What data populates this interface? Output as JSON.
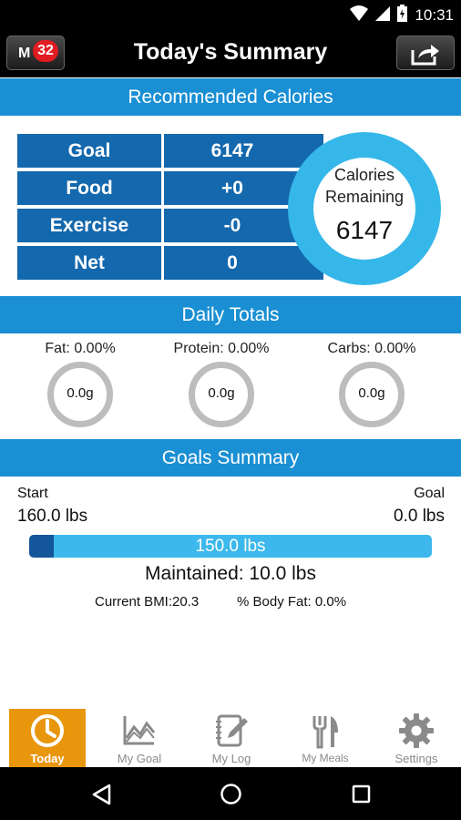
{
  "status_bar": {
    "time": "10:31"
  },
  "header": {
    "left_button_letter": "M",
    "badge_count": "32",
    "title": "Today's Summary"
  },
  "recommended": {
    "section_title": "Recommended Calories",
    "rows": [
      {
        "label": "Goal",
        "value": "6147"
      },
      {
        "label": "Food",
        "value": "+0"
      },
      {
        "label": "Exercise",
        "value": "-0"
      },
      {
        "label": "Net",
        "value": "0"
      }
    ],
    "remaining_label": "Calories Remaining",
    "remaining_value": "6147"
  },
  "daily_totals": {
    "section_title": "Daily Totals",
    "macros": [
      {
        "label": "Fat: 0.00%",
        "value": "0.0g"
      },
      {
        "label": "Protein: 0.00%",
        "value": "0.0g"
      },
      {
        "label": "Carbs: 0.00%",
        "value": "0.0g"
      }
    ]
  },
  "goals_summary": {
    "section_title": "Goals Summary",
    "start_label": "Start",
    "start_value": "160.0 lbs",
    "goal_label": "Goal",
    "goal_value": "0.0 lbs",
    "progress_text": "150.0 lbs",
    "progress_fraction": 0.06,
    "maintained_text": "Maintained: 10.0 lbs",
    "bmi_text": "Current BMI:20.3",
    "body_fat_text": "% Body Fat: 0.0%"
  },
  "bottom_nav": {
    "items": [
      {
        "label": "Today",
        "icon": "today-icon",
        "active": true
      },
      {
        "label": "My Goal",
        "icon": "chart-icon",
        "active": false
      },
      {
        "label": "My Log",
        "icon": "log-icon",
        "active": false
      },
      {
        "label": "My Meals",
        "icon": "fork-knife-icon",
        "active": false
      },
      {
        "label": "Settings",
        "icon": "gear-icon",
        "active": false
      }
    ]
  },
  "colors": {
    "section_blue": "#1a8fd3",
    "row_blue": "#1468ad",
    "ring_blue": "#36b7ea",
    "active_tab": "#e8960c",
    "badge_red": "#e01b22"
  }
}
